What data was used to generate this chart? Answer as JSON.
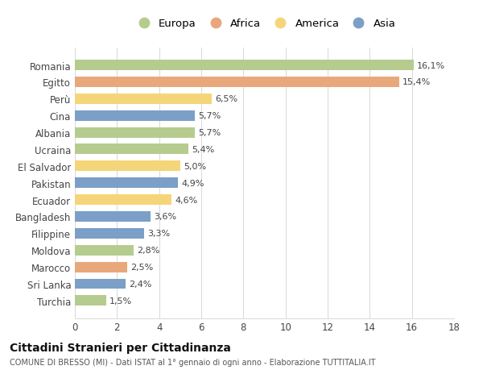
{
  "categories": [
    "Romania",
    "Egitto",
    "Perù",
    "Cina",
    "Albania",
    "Ucraina",
    "El Salvador",
    "Pakistan",
    "Ecuador",
    "Bangladesh",
    "Filippine",
    "Moldova",
    "Marocco",
    "Sri Lanka",
    "Turchia"
  ],
  "values": [
    16.1,
    15.4,
    6.5,
    5.7,
    5.7,
    5.4,
    5.0,
    4.9,
    4.6,
    3.6,
    3.3,
    2.8,
    2.5,
    2.4,
    1.5
  ],
  "labels": [
    "16,1%",
    "15,4%",
    "6,5%",
    "5,7%",
    "5,7%",
    "5,4%",
    "5,0%",
    "4,9%",
    "4,6%",
    "3,6%",
    "3,3%",
    "2,8%",
    "2,5%",
    "2,4%",
    "1,5%"
  ],
  "continents": [
    "Europa",
    "Africa",
    "America",
    "Asia",
    "Europa",
    "Europa",
    "America",
    "Asia",
    "America",
    "Asia",
    "Asia",
    "Europa",
    "Africa",
    "Asia",
    "Europa"
  ],
  "colors": {
    "Europa": "#b5cc8e",
    "Africa": "#e8a87c",
    "America": "#f5d57a",
    "Asia": "#7b9fc7"
  },
  "legend_order": [
    "Europa",
    "Africa",
    "America",
    "Asia"
  ],
  "title": "Cittadini Stranieri per Cittadinanza",
  "subtitle": "COMUNE DI BRESSO (MI) - Dati ISTAT al 1° gennaio di ogni anno - Elaborazione TUTTITALIA.IT",
  "xlim": [
    0,
    18
  ],
  "xticks": [
    0,
    2,
    4,
    6,
    8,
    10,
    12,
    14,
    16,
    18
  ],
  "bg_color": "#ffffff",
  "grid_color": "#d8d8d8"
}
